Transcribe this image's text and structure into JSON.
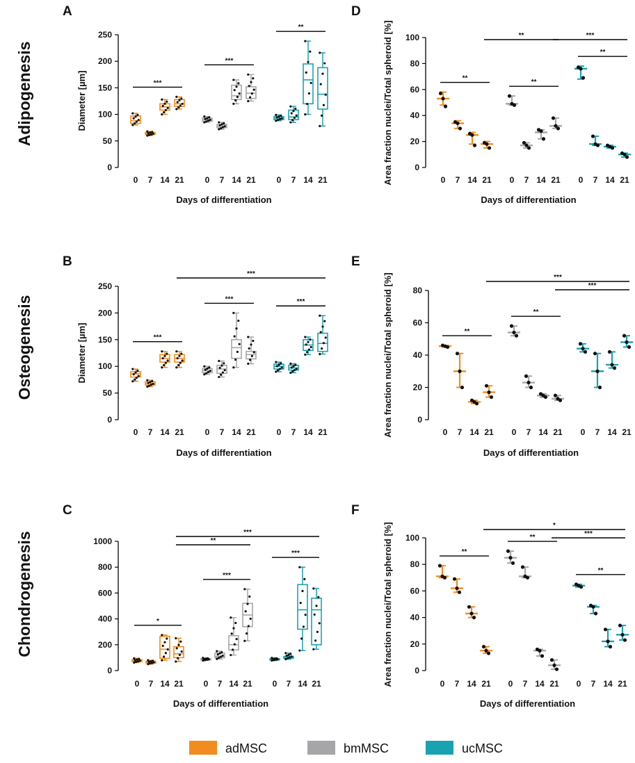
{
  "figure": {
    "row_labels": [
      "Adipogenesis",
      "Osteogenesis",
      "Chondrogenesis"
    ],
    "legend": [
      {
        "name": "adMSC",
        "color": "#f28c1e"
      },
      {
        "name": "bmMSC",
        "color": "#a6a6a8"
      },
      {
        "name": "ucMSC",
        "color": "#19a3b2"
      }
    ]
  },
  "chart_data": [
    {
      "panel": "A",
      "type": "box",
      "row": "Adipogenesis",
      "ylabel": "Diameter [µm]",
      "xlabel": "Days of differentiation",
      "ylim": [
        0,
        250
      ],
      "yticks": [
        0,
        50,
        100,
        150,
        200,
        250
      ],
      "categories": [
        "0",
        "7",
        "14",
        "21"
      ],
      "series": [
        {
          "name": "adMSC",
          "boxes": [
            [
              80,
              83,
              88,
              97,
              102
            ],
            [
              60,
              62,
              64,
              66,
              68
            ],
            [
              100,
              108,
              114,
              120,
              128
            ],
            [
              110,
              115,
              120,
              128,
              133
            ]
          ]
        },
        {
          "name": "bmMSC",
          "boxes": [
            [
              85,
              87,
              90,
              93,
              96
            ],
            [
              72,
              75,
              78,
              81,
              85
            ],
            [
              120,
              128,
              135,
              155,
              165
            ],
            [
              125,
              130,
              140,
              152,
              175
            ]
          ]
        },
        {
          "name": "ucMSC",
          "boxes": [
            [
              88,
              90,
              93,
              96,
              99
            ],
            [
              85,
              90,
              95,
              108,
              115
            ],
            [
              100,
              120,
              165,
              195,
              238
            ],
            [
              78,
              110,
              138,
              188,
              216
            ]
          ]
        }
      ],
      "significance": [
        {
          "from": [
            0,
            0
          ],
          "to": [
            0,
            3
          ],
          "label": "***"
        },
        {
          "from": [
            1,
            0
          ],
          "to": [
            1,
            3
          ],
          "label": "***"
        },
        {
          "from": [
            2,
            0
          ],
          "to": [
            2,
            3
          ],
          "label": "**"
        }
      ]
    },
    {
      "panel": "B",
      "type": "box",
      "row": "Osteogenesis",
      "ylabel": "Diameter [µm]",
      "xlabel": "Days of differentiation",
      "ylim": [
        0,
        250
      ],
      "yticks": [
        0,
        50,
        100,
        150,
        200,
        250
      ],
      "categories": [
        "0",
        "7",
        "14",
        "21"
      ],
      "series": [
        {
          "name": "adMSC",
          "boxes": [
            [
              72,
              80,
              86,
              90,
              95
            ],
            [
              62,
              65,
              68,
              71,
              74
            ],
            [
              98,
              108,
              115,
              122,
              128
            ],
            [
              98,
              108,
              115,
              122,
              128
            ]
          ]
        },
        {
          "name": "bmMSC",
          "boxes": [
            [
              85,
              88,
              92,
              96,
              100
            ],
            [
              80,
              87,
              95,
              102,
              110
            ],
            [
              98,
              115,
              135,
              150,
              200
            ],
            [
              105,
              114,
              122,
              128,
              155
            ]
          ]
        },
        {
          "name": "ucMSC",
          "boxes": [
            [
              90,
              95,
              100,
              104,
              108
            ],
            [
              88,
              93,
              97,
              102,
              105
            ],
            [
              122,
              130,
              140,
              150,
              155
            ],
            [
              123,
              128,
              143,
              162,
              195
            ]
          ]
        }
      ],
      "significance": [
        {
          "from": [
            0,
            0
          ],
          "to": [
            0,
            3
          ],
          "label": "***"
        },
        {
          "from": [
            1,
            0
          ],
          "to": [
            1,
            3
          ],
          "label": "***"
        },
        {
          "from": [
            2,
            0
          ],
          "to": [
            2,
            3
          ],
          "label": "***"
        },
        {
          "from": [
            0,
            3
          ],
          "to": [
            2,
            3
          ],
          "label": "***"
        }
      ]
    },
    {
      "panel": "C",
      "type": "box",
      "row": "Chondrogenesis",
      "ylabel": "",
      "xlabel": "Days of differentiation",
      "ylim": [
        0,
        1000
      ],
      "yticks": [
        0,
        200,
        400,
        600,
        800,
        1000
      ],
      "categories": [
        "0",
        "7",
        "14",
        "21"
      ],
      "series": [
        {
          "name": "adMSC",
          "boxes": [
            [
              62,
              70,
              78,
              85,
              95
            ],
            [
              50,
              58,
              65,
              72,
              80
            ],
            [
              80,
              95,
              165,
              265,
              275
            ],
            [
              70,
              100,
              130,
              185,
              250
            ]
          ]
        },
        {
          "name": "bmMSC",
          "boxes": [
            [
              78,
              82,
              88,
              93,
              98
            ],
            [
              90,
              100,
              110,
              135,
              150
            ],
            [
              120,
              160,
              200,
              270,
              410
            ],
            [
              230,
              340,
              430,
              520,
              630
            ]
          ]
        },
        {
          "name": "ucMSC",
          "boxes": [
            [
              78,
              82,
              88,
              92,
              98
            ],
            [
              88,
              95,
              100,
              110,
              135
            ],
            [
              155,
              320,
              470,
              665,
              800
            ],
            [
              165,
              200,
              470,
              560,
              635
            ]
          ]
        }
      ],
      "significance": [
        {
          "from": [
            0,
            0
          ],
          "to": [
            0,
            3
          ],
          "label": "*"
        },
        {
          "from": [
            1,
            0
          ],
          "to": [
            1,
            3
          ],
          "label": "***"
        },
        {
          "from": [
            0,
            3
          ],
          "to": [
            1,
            3
          ],
          "label": "**"
        },
        {
          "from": [
            2,
            0
          ],
          "to": [
            2,
            3
          ],
          "label": "***"
        },
        {
          "from": [
            0,
            3
          ],
          "to": [
            2,
            3
          ],
          "label": "***"
        }
      ]
    },
    {
      "panel": "D",
      "type": "errorbar",
      "row": "Adipogenesis",
      "ylabel": "Area fraction nuclei/Total spheroid [%]",
      "xlabel": "Days of differentiation",
      "ylim": [
        0,
        100
      ],
      "yticks": [
        0,
        20,
        40,
        60,
        80,
        100
      ],
      "categories": [
        "0",
        "7",
        "14",
        "21"
      ],
      "series": [
        {
          "name": "adMSC",
          "mean": [
            53,
            34,
            25,
            18
          ],
          "low": [
            48,
            30,
            18,
            15
          ],
          "high": [
            58,
            36,
            27,
            20
          ],
          "points": [
            [
              57,
              53,
              47
            ],
            [
              35,
              34,
              30
            ],
            [
              26,
              25,
              17
            ],
            [
              19,
              18,
              15
            ]
          ]
        },
        {
          "name": "bmMSC",
          "mean": [
            49,
            17,
            27,
            32
          ],
          "low": [
            48,
            15,
            22,
            30
          ],
          "high": [
            55,
            19,
            29,
            38
          ],
          "points": [
            [
              55,
              49,
              48
            ],
            [
              19,
              17,
              15
            ],
            [
              29,
              28,
              22
            ],
            [
              38,
              32,
              30
            ]
          ]
        },
        {
          "name": "ucMSC",
          "mean": [
            76,
            18,
            16,
            10
          ],
          "low": [
            68,
            17,
            15,
            8
          ],
          "high": [
            78,
            24,
            17,
            11
          ],
          "points": [
            [
              77,
              76,
              69
            ],
            [
              24,
              18,
              17
            ],
            [
              17,
              16,
              15
            ],
            [
              11,
              10,
              8
            ]
          ]
        }
      ],
      "significance": [
        {
          "from": [
            0,
            0
          ],
          "to": [
            0,
            3
          ],
          "label": "**"
        },
        {
          "from": [
            1,
            0
          ],
          "to": [
            1,
            3
          ],
          "label": "**"
        },
        {
          "from": [
            0,
            3
          ],
          "to": [
            1,
            3
          ],
          "label": "**"
        },
        {
          "from": [
            2,
            0
          ],
          "to": [
            2,
            3
          ],
          "label": "**"
        },
        {
          "from": [
            1,
            3
          ],
          "to": [
            2,
            3
          ],
          "label": "***"
        }
      ]
    },
    {
      "panel": "E",
      "type": "errorbar",
      "row": "Osteogenesis",
      "ylabel": "Area fraction nuclei/Total spheroid [%]",
      "xlabel": "Days of differentiation",
      "ylim": [
        0,
        80
      ],
      "yticks": [
        0,
        20,
        40,
        60,
        80
      ],
      "categories": [
        "0",
        "7",
        "14",
        "21"
      ],
      "series": [
        {
          "name": "adMSC",
          "mean": [
            45.5,
            30,
            11,
            17
          ],
          "low": [
            45,
            20,
            10,
            14
          ],
          "high": [
            46,
            41,
            12,
            21
          ],
          "points": [
            [
              46,
              45.5,
              45
            ],
            [
              41,
              30,
              20
            ],
            [
              12,
              11,
              10
            ],
            [
              21,
              17,
              14
            ]
          ]
        },
        {
          "name": "bmMSC",
          "mean": [
            54,
            23,
            15,
            13
          ],
          "low": [
            52,
            20,
            14,
            12
          ],
          "high": [
            58,
            27,
            16,
            15
          ],
          "points": [
            [
              58,
              54,
              52
            ],
            [
              27,
              23,
              20
            ],
            [
              16,
              15,
              14
            ],
            [
              15,
              13,
              12
            ]
          ]
        },
        {
          "name": "ucMSC",
          "mean": [
            44,
            30,
            34,
            48
          ],
          "low": [
            42,
            20,
            32,
            45
          ],
          "high": [
            47,
            41,
            42,
            52
          ],
          "points": [
            [
              47,
              44,
              42
            ],
            [
              41,
              30,
              20
            ],
            [
              42,
              34,
              32
            ],
            [
              52,
              48,
              45
            ]
          ]
        }
      ],
      "significance": [
        {
          "from": [
            0,
            0
          ],
          "to": [
            0,
            3
          ],
          "label": "**"
        },
        {
          "from": [
            1,
            0
          ],
          "to": [
            1,
            3
          ],
          "label": "**"
        },
        {
          "from": [
            1,
            3
          ],
          "to": [
            2,
            3
          ],
          "label": "***"
        },
        {
          "from": [
            0,
            3
          ],
          "to": [
            2,
            3
          ],
          "label": "***"
        }
      ]
    },
    {
      "panel": "F",
      "type": "errorbar",
      "row": "Chondrogenesis",
      "ylabel": "Area fraction nuclei/Total spheroid [%]",
      "xlabel": "Days of differentiation",
      "ylim": [
        0,
        100
      ],
      "yticks": [
        0,
        20,
        40,
        60,
        80,
        100
      ],
      "categories": [
        "0",
        "7",
        "14",
        "21"
      ],
      "series": [
        {
          "name": "adMSC",
          "mean": [
            71,
            62,
            43,
            15
          ],
          "low": [
            70,
            59,
            40,
            13
          ],
          "high": [
            79,
            69,
            48,
            18
          ],
          "points": [
            [
              79,
              71,
              70
            ],
            [
              69,
              62,
              59
            ],
            [
              48,
              43,
              40
            ],
            [
              18,
              15,
              13
            ]
          ]
        },
        {
          "name": "bmMSC",
          "mean": [
            85,
            71,
            15,
            4
          ],
          "low": [
            81,
            70,
            11,
            1
          ],
          "high": [
            90,
            78,
            16,
            8
          ],
          "points": [
            [
              90,
              85,
              81
            ],
            [
              78,
              71,
              70
            ],
            [
              16,
              15,
              11
            ],
            [
              8,
              4,
              1
            ]
          ]
        },
        {
          "name": "ucMSC",
          "mean": [
            64,
            48,
            22,
            27
          ],
          "low": [
            63,
            43,
            18,
            23
          ],
          "high": [
            65,
            49,
            31,
            34
          ],
          "points": [
            [
              65,
              64,
              63
            ],
            [
              49,
              48,
              43
            ],
            [
              31,
              22,
              18
            ],
            [
              34,
              27,
              23
            ]
          ]
        }
      ],
      "significance": [
        {
          "from": [
            0,
            0
          ],
          "to": [
            0,
            3
          ],
          "label": "**"
        },
        {
          "from": [
            1,
            0
          ],
          "to": [
            1,
            3
          ],
          "label": "**"
        },
        {
          "from": [
            2,
            0
          ],
          "to": [
            2,
            3
          ],
          "label": "**"
        },
        {
          "from": [
            1,
            3
          ],
          "to": [
            2,
            3
          ],
          "label": "***"
        },
        {
          "from": [
            0,
            3
          ],
          "to": [
            2,
            3
          ],
          "label": "*"
        }
      ]
    }
  ]
}
